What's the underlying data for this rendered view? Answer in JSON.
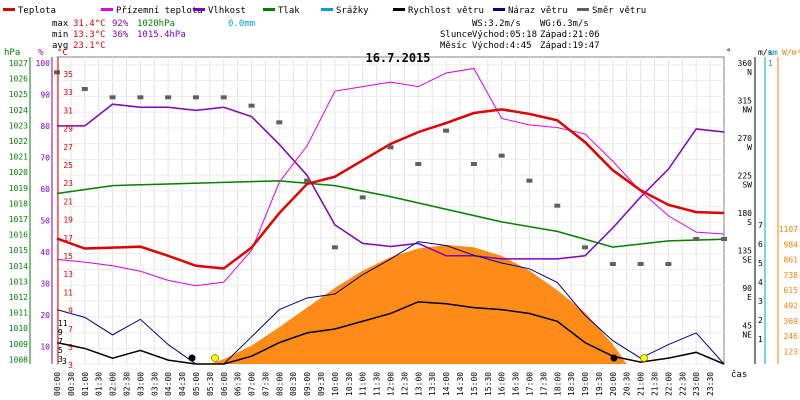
{
  "header": {
    "legend": [
      {
        "label": "Teplota",
        "color": "#e00000"
      },
      {
        "label": "Přízemní teplota",
        "color": "#e000e0"
      },
      {
        "label": "Vlhkost",
        "color": "#8000c0"
      },
      {
        "label": "Tlak",
        "color": "#008000"
      },
      {
        "label": "Srážky",
        "color": "#00a0d0"
      },
      {
        "label": "Rychlost větru",
        "color": "#000000"
      },
      {
        "label": "Náraz větru",
        "color": "#000080"
      },
      {
        "label": "Směr větru",
        "color": "#606060"
      }
    ],
    "stats": {
      "max_label": "max",
      "max_temp": "31.4°C",
      "max_hum": "92%",
      "max_press": "1020hPa",
      "max_rain": "0.0mm",
      "min_label": "min",
      "min_temp": "13.3°C",
      "min_hum": "36%",
      "min_press": "1015.4hPa",
      "avg_label": "avg",
      "avg_temp": "23.1°C"
    },
    "wind": {
      "ws": "WS:3.2m/s",
      "wg": "WG:6.3m/s"
    },
    "sun": {
      "label": "Slunce",
      "rise": "Východ:05:18",
      "set": "Západ:21:06"
    },
    "moon": {
      "label": "Měsíc",
      "rise": "Východ:4:45",
      "set": "Západ:19:47"
    },
    "date": "16.7.2015"
  },
  "axes": {
    "hpa_unit": "hPa",
    "hpa_ticks": [
      "1027",
      "1026",
      "1025",
      "1024",
      "1023",
      "1022",
      "1021",
      "1020",
      "1019",
      "1018",
      "1017",
      "1016",
      "1015",
      "1014",
      "1013",
      "1012",
      "1011",
      "1010",
      "1009",
      "1008"
    ],
    "pct_unit": "%",
    "pct_ticks": [
      "100",
      "90",
      "80",
      "70",
      "60",
      "50",
      "40",
      "30",
      "20",
      "10"
    ],
    "temp_unit": "°C",
    "temp_ticks": [
      "35",
      "33",
      "31",
      "29",
      "27",
      "25",
      "23",
      "21",
      "19",
      "17",
      "15",
      "13",
      "11",
      "9",
      "7",
      "5",
      "3"
    ],
    "deg_unit": "°",
    "dir_ticks": [
      {
        "deg": "360",
        "dir": "N"
      },
      {
        "deg": "315",
        "dir": "NW"
      },
      {
        "deg": "270",
        "dir": "W"
      },
      {
        "deg": "225",
        "dir": "SW"
      },
      {
        "deg": "180",
        "dir": "S"
      },
      {
        "deg": "135",
        "dir": "SE"
      },
      {
        "deg": "90",
        "dir": "E"
      },
      {
        "deg": "45",
        "dir": "NE"
      }
    ],
    "ms_unit": "m/s",
    "ms_ticks": [
      "7",
      "6",
      "5",
      "4",
      "3",
      "2",
      "1"
    ],
    "mm_unit": "mm",
    "mm_top": "1",
    "wm2_unit": "W/m²",
    "wm2_ticks": [
      "1107",
      "984",
      "861",
      "738",
      "615",
      "492",
      "369",
      "246",
      "123"
    ],
    "wind_left_ticks": [
      "11",
      "9",
      "7",
      "5",
      "3"
    ],
    "time_label": "čas",
    "time_ticks": [
      "00:00",
      "00:30",
      "01:00",
      "01:30",
      "02:00",
      "02:30",
      "03:00",
      "03:30",
      "04:00",
      "04:30",
      "05:00",
      "05:30",
      "06:00",
      "06:30",
      "07:00",
      "07:30",
      "08:00",
      "08:30",
      "09:00",
      "09:30",
      "10:00",
      "10:30",
      "11:00",
      "11:30",
      "12:00",
      "12:30",
      "13:00",
      "13:30",
      "14:00",
      "14:30",
      "15:00",
      "15:30",
      "16:00",
      "16:30",
      "17:00",
      "17:30",
      "18:00",
      "18:30",
      "19:00",
      "19:30",
      "20:00",
      "20:30",
      "21:00",
      "21:30",
      "22:00",
      "22:30",
      "23:00",
      "23:30"
    ]
  },
  "chart_data": {
    "type": "line",
    "title": "16.7.2015",
    "x_unit": "hour",
    "series": [
      {
        "name": "Teplota",
        "color": "#e00000",
        "unit": "°C",
        "x": [
          0,
          1,
          2,
          3,
          4,
          5,
          6,
          7,
          8,
          9,
          10,
          11,
          12,
          13,
          14,
          15,
          16,
          17,
          18,
          19,
          20,
          21,
          22,
          23,
          24
        ],
        "values": [
          16.8,
          15.7,
          15.8,
          15.9,
          14.9,
          13.8,
          13.5,
          15.8,
          19.6,
          22.8,
          23.6,
          25.4,
          27.2,
          28.5,
          29.5,
          30.6,
          31.0,
          30.5,
          29.8,
          27.4,
          24.3,
          22.1,
          20.5,
          19.7,
          19.6
        ]
      },
      {
        "name": "Přízemní teplota",
        "color": "#e000e0",
        "unit": "°C",
        "x": [
          0,
          1,
          2,
          3,
          4,
          5,
          6,
          7,
          8,
          9,
          10,
          11,
          12,
          13,
          14,
          15,
          16,
          17,
          18,
          19,
          20,
          21,
          22,
          23,
          24
        ],
        "values": [
          14.5,
          14.2,
          13.8,
          13.2,
          12.2,
          11.6,
          12.0,
          15.5,
          23.0,
          27.0,
          33.0,
          33.5,
          34.0,
          33.5,
          35.0,
          35.5,
          30.0,
          29.3,
          29.0,
          28.3,
          25.3,
          22.0,
          19.3,
          17.5,
          17.3
        ]
      },
      {
        "name": "Vlhkost",
        "color": "#8000c0",
        "unit": "%",
        "x": [
          0,
          1,
          2,
          3,
          4,
          5,
          6,
          7,
          8,
          9,
          10,
          11,
          12,
          13,
          14,
          15,
          16,
          17,
          18,
          19,
          20,
          21,
          22,
          23,
          24
        ],
        "values": [
          80,
          80,
          87,
          86,
          86,
          85,
          86,
          83,
          74,
          64,
          48,
          42,
          41,
          42,
          38,
          38,
          37,
          37,
          37,
          38,
          47,
          57,
          66,
          79,
          78
        ]
      },
      {
        "name": "Tlak",
        "color": "#008000",
        "unit": "hPa",
        "x": [
          0,
          2,
          4,
          6,
          8,
          10,
          12,
          14,
          16,
          18,
          20,
          22,
          24
        ],
        "values": [
          1018.8,
          1019.3,
          1019.4,
          1019.5,
          1019.6,
          1019.3,
          1018.6,
          1017.8,
          1017.0,
          1016.4,
          1015.4,
          1015.8,
          1015.9
        ]
      },
      {
        "name": "Rychlost větru",
        "color": "#000000",
        "unit": "m/s",
        "x": [
          0,
          1,
          2,
          3,
          4,
          5,
          6,
          7,
          8,
          9,
          10,
          11,
          12,
          13,
          14,
          15,
          16,
          17,
          18,
          19,
          20,
          21,
          22,
          23,
          24
        ],
        "values": [
          1.1,
          0.8,
          0.3,
          0.7,
          0.2,
          0.0,
          0.0,
          0.4,
          1.1,
          1.6,
          1.8,
          2.2,
          2.6,
          3.2,
          3.1,
          2.9,
          2.8,
          2.6,
          2.2,
          1.1,
          0.4,
          0.1,
          0.3,
          0.6,
          0.0
        ]
      },
      {
        "name": "Náraz větru",
        "color": "#000080",
        "unit": "m/s",
        "x": [
          0,
          1,
          2,
          3,
          4,
          5,
          6,
          7,
          8,
          9,
          10,
          11,
          12,
          13,
          14,
          15,
          16,
          17,
          18,
          19,
          20,
          21,
          22,
          23,
          24
        ],
        "values": [
          2.8,
          2.4,
          1.5,
          2.3,
          1.0,
          0.0,
          0.0,
          1.4,
          2.8,
          3.4,
          3.6,
          4.6,
          5.4,
          6.3,
          6.1,
          5.6,
          5.2,
          4.9,
          4.2,
          2.5,
          1.2,
          0.3,
          1.0,
          1.6,
          0.0
        ]
      },
      {
        "name": "Směr větru",
        "color": "#606060",
        "unit": "°",
        "x": [
          0,
          1,
          2,
          3,
          4,
          5,
          6,
          7,
          8,
          9,
          10,
          11,
          12,
          13,
          14,
          15,
          16,
          17,
          18,
          19,
          20,
          21,
          22,
          23,
          24
        ],
        "values": [
          350,
          330,
          320,
          320,
          320,
          320,
          320,
          310,
          290,
          220,
          140,
          200,
          260,
          240,
          280,
          240,
          250,
          220,
          190,
          140,
          120,
          120,
          120,
          150,
          150
        ]
      },
      {
        "name": "Sluneční záření",
        "color": "#ff8000",
        "unit": "W/m²",
        "x": [
          5.5,
          6,
          7,
          8,
          9,
          10,
          11,
          12,
          13,
          14,
          15,
          16,
          17,
          18,
          19,
          20,
          20.5
        ],
        "values": [
          0,
          40,
          150,
          300,
          460,
          620,
          760,
          870,
          940,
          970,
          950,
          880,
          760,
          600,
          420,
          160,
          0
        ]
      }
    ]
  }
}
